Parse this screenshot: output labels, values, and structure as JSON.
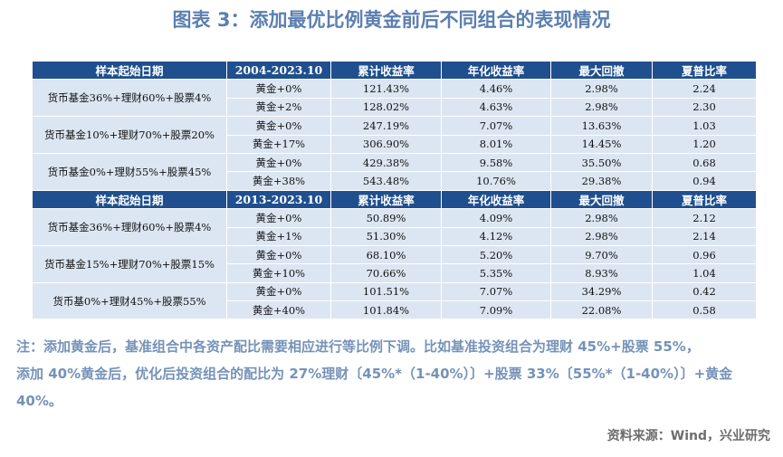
{
  "title": "图表 3：添加最优比例黄金前后不同组合的表现情况",
  "table": {
    "sections": [
      {
        "header": [
          "样本起始日期",
          "2004-2023.10",
          "累计收益率",
          "年化收益率",
          "最大回撤",
          "夏普比率"
        ],
        "groups": [
          {
            "label": "货币基金36%+理财60%+股票4%",
            "rows": [
              [
                "黄金+0%",
                "121.43%",
                "4.46%",
                "2.98%",
                "2.24"
              ],
              [
                "黄金+2%",
                "128.02%",
                "4.63%",
                "2.98%",
                "2.30"
              ]
            ]
          },
          {
            "label": "货币基金10%+理财70%+股票20%",
            "rows": [
              [
                "黄金+0%",
                "247.19%",
                "7.07%",
                "13.63%",
                "1.03"
              ],
              [
                "黄金+17%",
                "306.90%",
                "8.01%",
                "14.45%",
                "1.20"
              ]
            ]
          },
          {
            "label": "货币基金0%+理财55%+股票45%",
            "rows": [
              [
                "黄金+0%",
                "429.38%",
                "9.58%",
                "35.50%",
                "0.68"
              ],
              [
                "黄金+38%",
                "543.48%",
                "10.76%",
                "29.38%",
                "0.94"
              ]
            ]
          }
        ]
      },
      {
        "header": [
          "样本起始日期",
          "2013-2023.10",
          "累计收益率",
          "年化收益率",
          "最大回撤",
          "夏普比率"
        ],
        "groups": [
          {
            "label": "货币基金36%+理财60%+股票4%",
            "rows": [
              [
                "黄金+0%",
                "50.89%",
                "4.09%",
                "2.98%",
                "2.12"
              ],
              [
                "黄金+1%",
                "51.30%",
                "4.12%",
                "2.98%",
                "2.14"
              ]
            ]
          },
          {
            "label": "货币基金15%+理财70%+股票15%",
            "rows": [
              [
                "黄金+0%",
                "68.10%",
                "5.20%",
                "9.70%",
                "0.96"
              ],
              [
                "黄金+10%",
                "70.66%",
                "5.35%",
                "8.93%",
                "1.04"
              ]
            ]
          },
          {
            "label": "货币基0%+理财45%+股票55%",
            "rows": [
              [
                "黄金+0%",
                "101.51%",
                "7.07%",
                "34.29%",
                "0.42"
              ],
              [
                "黄金+40%",
                "101.84%",
                "7.09%",
                "22.08%",
                "0.58"
              ]
            ]
          }
        ]
      }
    ]
  },
  "note": [
    "注：添加黄金后，基准组合中各资产配比需要相应进行等比例下调。比如基准投资组合为理财 45%+股票 55%，",
    "添加 40%黄金后，优化后投资组合的配比为 27%理财〔45%*（1-40%）〕+股票 33%〔55%*（1-40%）〕+黄金",
    "40%。"
  ],
  "source": "资料来源：Wind，兴业研究"
}
